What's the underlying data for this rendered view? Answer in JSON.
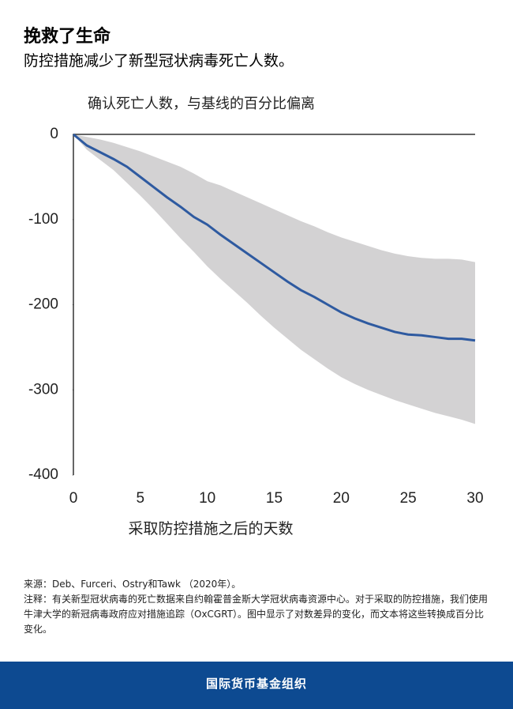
{
  "header": {
    "title": "挽救了生命",
    "subtitle": "防控措施减少了新型冠状病毒死亡人数。"
  },
  "chart_data": {
    "type": "line",
    "title": "确认死亡人数，与基线的百分比偏离",
    "x_label": "采取防控措施之后的天数",
    "x": [
      0,
      1,
      2,
      3,
      4,
      5,
      6,
      7,
      8,
      9,
      10,
      11,
      12,
      13,
      14,
      15,
      16,
      17,
      18,
      19,
      20,
      21,
      22,
      23,
      24,
      25,
      26,
      27,
      28,
      29,
      30
    ],
    "series": [
      {
        "color": "#2e5aa0",
        "values": [
          0,
          -13,
          -21,
          -29,
          -38,
          -50,
          -62,
          -74,
          -85,
          -97,
          -106,
          -118,
          -129,
          -140,
          -151,
          -162,
          -173,
          -183,
          -191,
          -200,
          -209,
          -216,
          -222,
          -227,
          -232,
          -235,
          -236,
          -238,
          -240,
          -240,
          -242
        ]
      }
    ],
    "band": {
      "color": "#d3d2d3",
      "upper": [
        0,
        -3,
        -6,
        -10,
        -15,
        -20,
        -26,
        -32,
        -38,
        -46,
        -55,
        -60,
        -67,
        -74,
        -81,
        -88,
        -95,
        -102,
        -108,
        -115,
        -121,
        -126,
        -131,
        -136,
        -140,
        -143,
        -145,
        -146,
        -146,
        -147,
        -150
      ],
      "lower": [
        0,
        -18,
        -30,
        -42,
        -57,
        -72,
        -88,
        -105,
        -122,
        -138,
        -155,
        -170,
        -184,
        -198,
        -213,
        -227,
        -240,
        -253,
        -264,
        -275,
        -285,
        -293,
        -300,
        -306,
        -312,
        -317,
        -322,
        -327,
        -331,
        -335,
        -340
      ]
    },
    "xlim": [
      0,
      30
    ],
    "xticks": [
      0,
      5,
      10,
      15,
      20,
      25,
      30
    ],
    "ylim": [
      -400,
      0
    ],
    "yticks": [
      0,
      -100,
      -200,
      -300,
      -400
    ]
  },
  "notes": {
    "source": "来源：Deb、Furceri、Ostry和Tawk （2020年）。",
    "note": "注释：有关新型冠状病毒的死亡数据来自约翰霍普金斯大学冠状病毒资源中心。对于采取的防控措施，我们使用牛津大学的新冠病毒政府应对措施追踪（OxCGRT）。图中显示了对数差异的变化，而文本将这些转换成百分比变化。"
  },
  "footer": "国际货币基金组织"
}
